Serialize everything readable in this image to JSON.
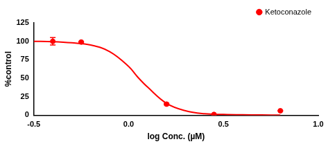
{
  "chart_data": {
    "type": "scatter",
    "x_label": "log Conc. (µM)",
    "y_label": "%control",
    "series": [
      {
        "name": "Ketoconazole",
        "color": "#ff0000",
        "marker": "circle",
        "x": [
          -0.4,
          -0.25,
          0.2,
          0.45,
          0.8
        ],
        "values": [
          100,
          99,
          15,
          1,
          6
        ],
        "error": [
          5,
          1,
          1,
          0.5,
          0.5
        ]
      },
      {
        "type": "line",
        "color": "#ff0000",
        "line_style": "solid",
        "x": [
          -0.5,
          -0.4,
          -0.3,
          -0.2,
          -0.1,
          0.0,
          0.05,
          0.1,
          0.2,
          0.3,
          0.4,
          0.5,
          0.6,
          0.7,
          0.8
        ],
        "values": [
          100,
          99.5,
          98,
          95,
          86,
          66,
          51,
          38,
          16,
          6,
          2,
          1,
          0.5,
          0.3,
          0.2
        ]
      }
    ],
    "xlim": [
      -0.5,
      1.0
    ],
    "xticks": [
      {
        "value": -0.5,
        "label": "-0.5"
      },
      {
        "value": 0,
        "label": "0.0"
      },
      {
        "value": 0.5,
        "label": "0.5"
      },
      {
        "value": 1.0,
        "label": "1.0"
      }
    ],
    "ylim": [
      0,
      125
    ],
    "yticks": [
      0,
      25,
      50,
      75,
      100,
      125
    ],
    "grid": false,
    "legend": "top-right"
  }
}
